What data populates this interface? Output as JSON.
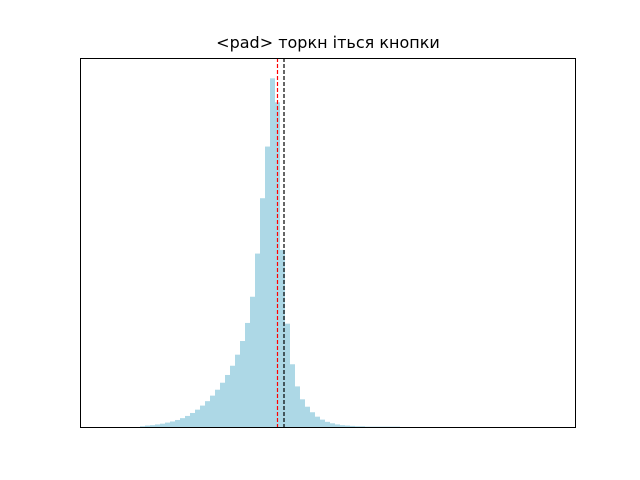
{
  "chart_data": {
    "type": "bar",
    "title": "<pad> торкн іться кнопки",
    "xlabel": "",
    "ylabel": "",
    "x_ticks_visible": false,
    "y_ticks_visible": false,
    "grid": false,
    "xlim": [
      0,
      99
    ],
    "ylim": [
      0,
      1.0
    ],
    "bar_color": "#add8e6",
    "bins_x": [
      12,
      13,
      14,
      15,
      16,
      17,
      18,
      19,
      20,
      21,
      22,
      23,
      24,
      25,
      26,
      27,
      28,
      29,
      30,
      31,
      32,
      33,
      34,
      35,
      36,
      37,
      38,
      39,
      40,
      41,
      42,
      43,
      44,
      45,
      46,
      47,
      48,
      49,
      50,
      51,
      52,
      53,
      54,
      55,
      56,
      57,
      58,
      59,
      60,
      61,
      62,
      63
    ],
    "bin_heights": [
      0.002,
      0.004,
      0.005,
      0.007,
      0.009,
      0.012,
      0.015,
      0.019,
      0.024,
      0.03,
      0.038,
      0.047,
      0.058,
      0.07,
      0.085,
      0.101,
      0.12,
      0.141,
      0.166,
      0.196,
      0.233,
      0.282,
      0.353,
      0.47,
      0.62,
      0.76,
      0.945,
      0.88,
      0.48,
      0.28,
      0.17,
      0.11,
      0.075,
      0.055,
      0.04,
      0.028,
      0.02,
      0.014,
      0.01,
      0.007,
      0.005,
      0.004,
      0.003,
      0.002,
      0.002,
      0.001,
      0.001,
      0.001,
      0.001,
      0.001,
      0.001,
      0.001
    ],
    "vlines": [
      {
        "x": 39.5,
        "color": "#ff0000",
        "style": "dashed"
      },
      {
        "x": 40.8,
        "color": "#000000",
        "style": "dashed"
      }
    ]
  }
}
